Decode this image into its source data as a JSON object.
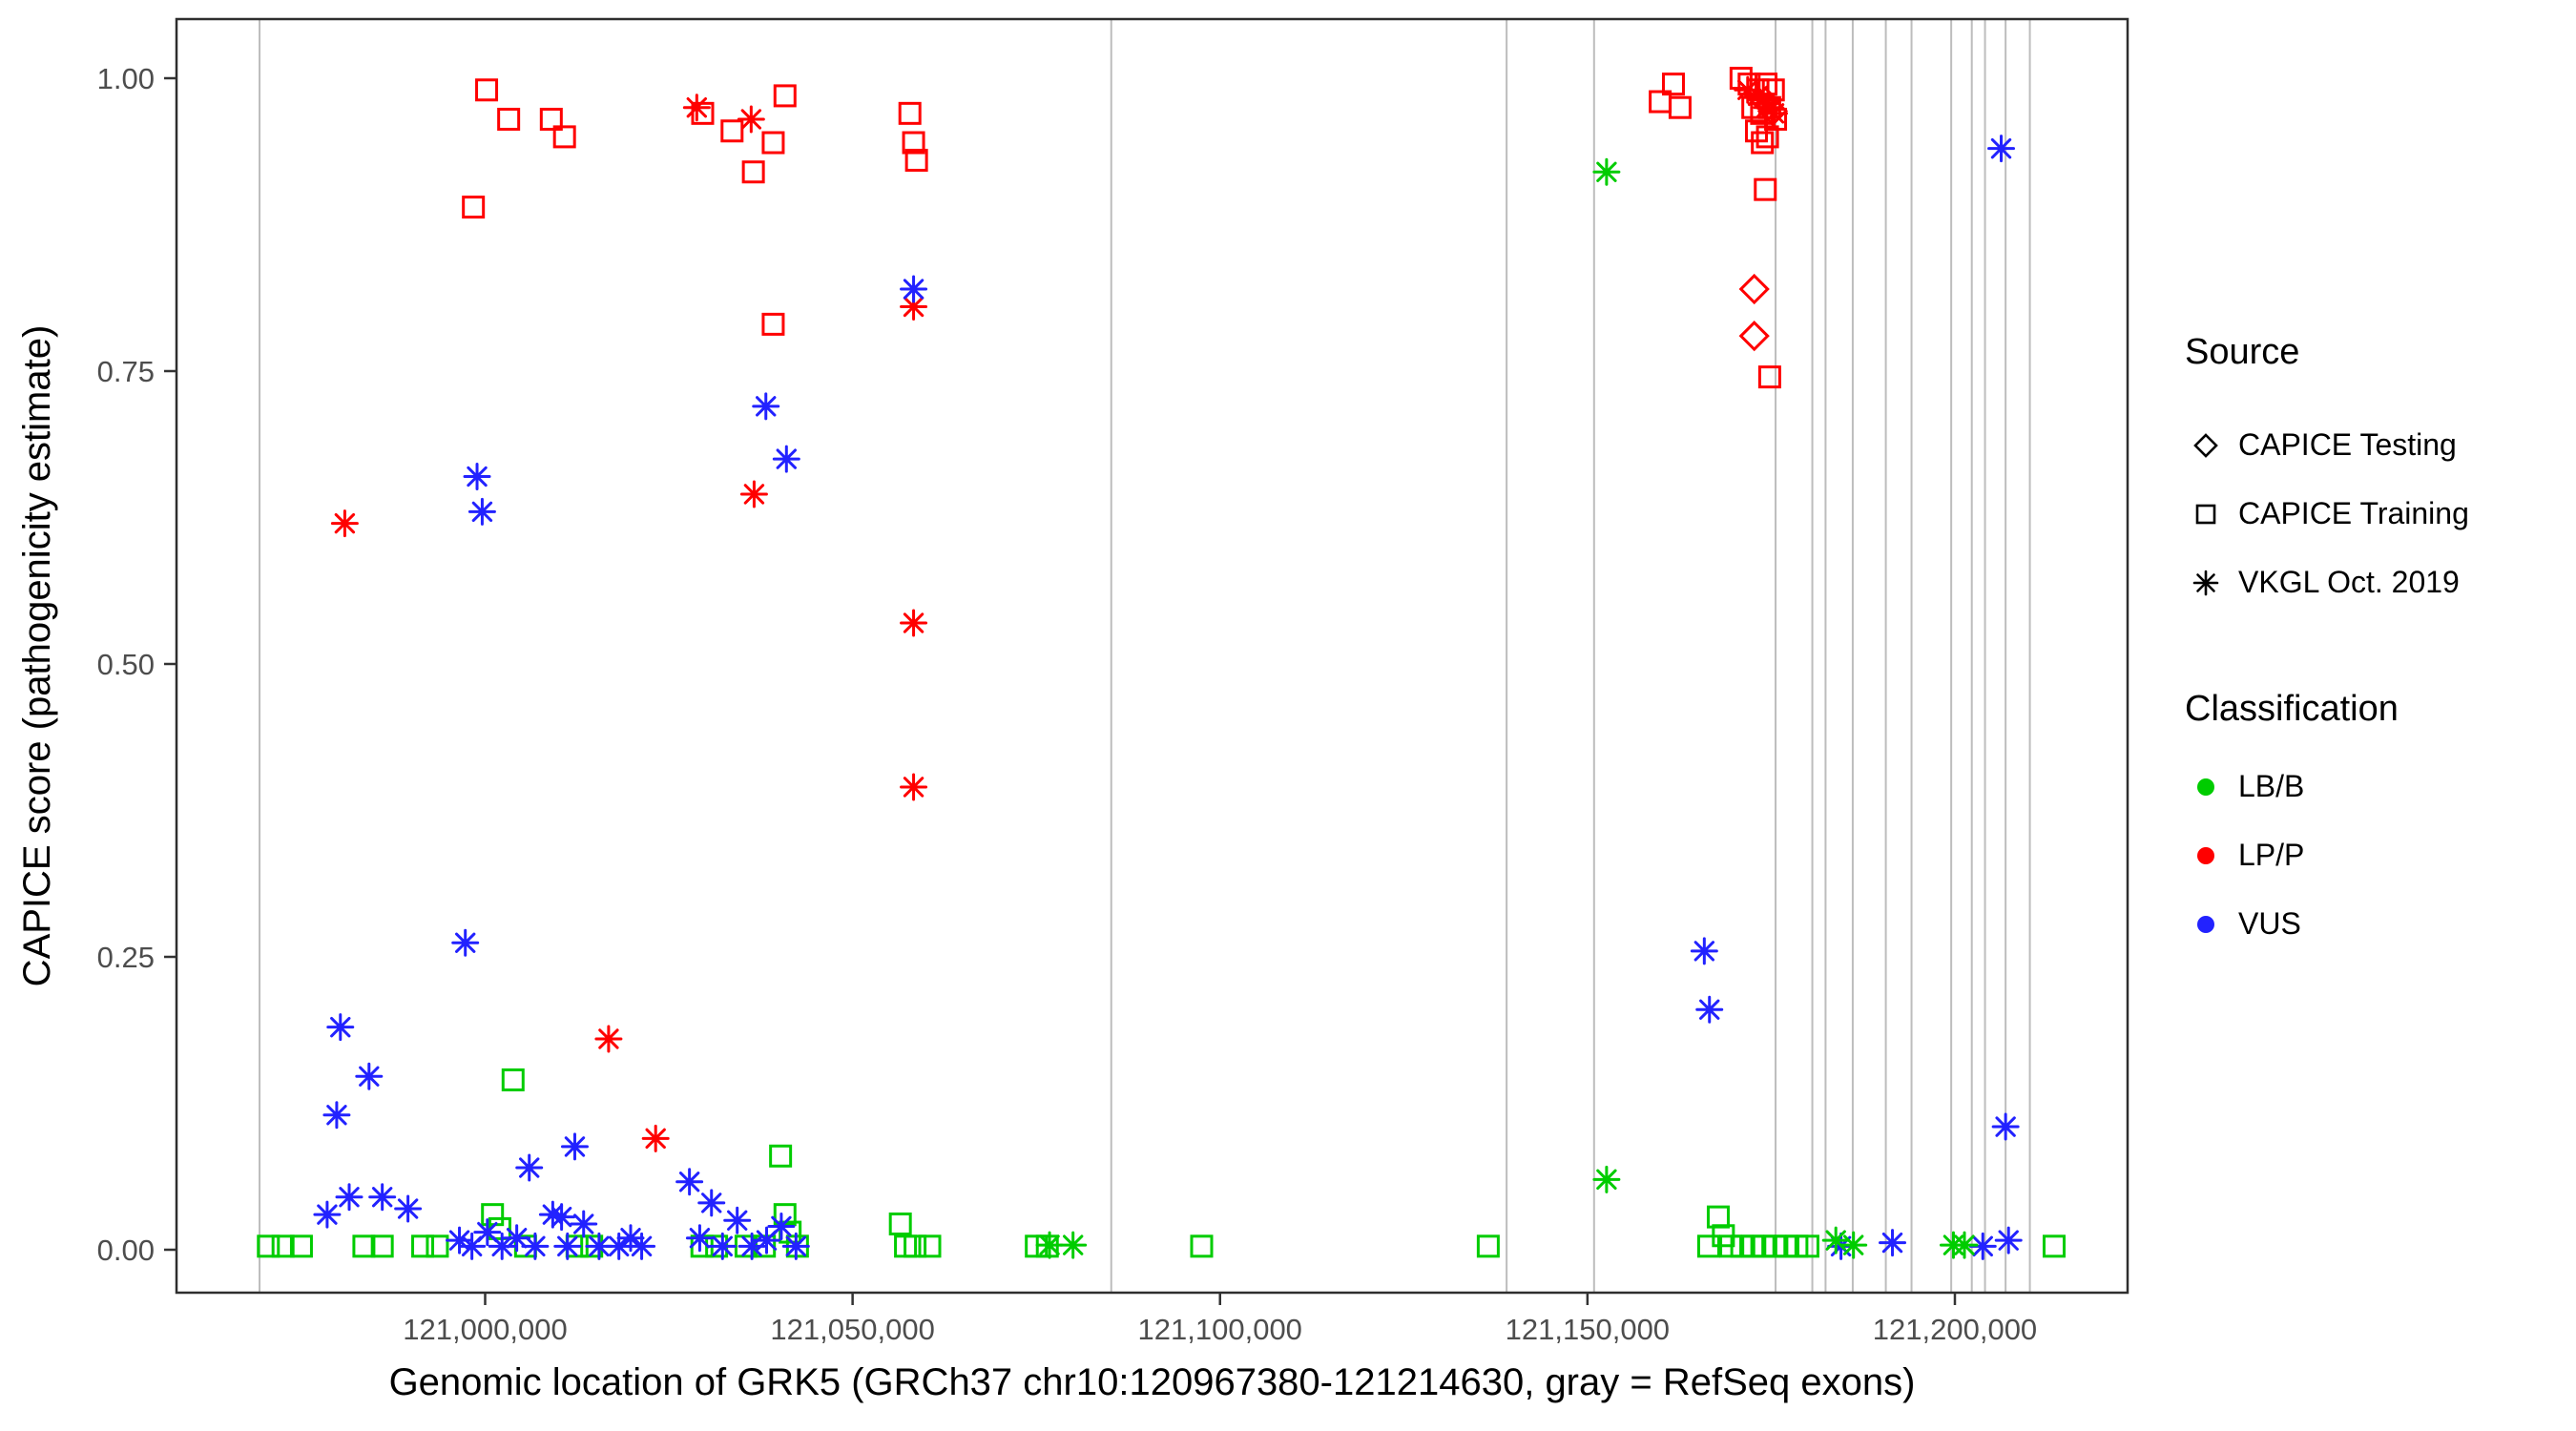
{
  "legend": {
    "source_title": "Source",
    "source_items": [
      "CAPICE Testing",
      "CAPICE Training",
      "VKGL Oct. 2019"
    ],
    "classification_title": "Classification",
    "classification_items": [
      "LB/B",
      "LP/P",
      "VUS"
    ]
  },
  "chart_data": {
    "type": "scatter",
    "title": "",
    "xlabel": "Genomic location of GRK5 (GRCh37 chr10:120967380-121214630, gray = RefSeq exons)",
    "ylabel": "CAPICE score (pathogenicity estimate)",
    "xlim": [
      120958000,
      121223500
    ],
    "ylim": [
      -0.037,
      1.05
    ],
    "x_ticks": [
      121000000,
      121050000,
      121100000,
      121150000,
      121200000
    ],
    "x_tick_labels": [
      "121,000,000",
      "121,050,000",
      "121,100,000",
      "121,150,000",
      "121,200,000"
    ],
    "y_ticks": [
      0.0,
      0.25,
      0.5,
      0.75,
      1.0
    ],
    "y_tick_labels": [
      "0.00",
      "0.25",
      "0.50",
      "0.75",
      "1.00"
    ],
    "grid": false,
    "legend_position": "right",
    "colors": {
      "lbb": "#00cc00",
      "lpp": "#ff0000",
      "vus": "#2222ff",
      "exon": "#bdbdbd"
    },
    "exons": [
      120969300,
      121085200,
      121139000,
      121150900,
      121175600,
      121180600,
      121182400,
      121186100,
      121190600,
      121194100,
      121199500,
      121202300,
      121204100,
      121206900,
      121210200
    ],
    "series": [
      {
        "name": "CAPICE Training / LP-P",
        "source": "CAPICE Training",
        "classification": "LP/P",
        "marker": "square",
        "color": "#ff0000",
        "points": [
          [
            120998400,
            0.89
          ],
          [
            121000200,
            0.99
          ],
          [
            121003200,
            0.965
          ],
          [
            121009000,
            0.965
          ],
          [
            121010800,
            0.95
          ],
          [
            121029600,
            0.97
          ],
          [
            121033600,
            0.955
          ],
          [
            121036500,
            0.92
          ],
          [
            121039200,
            0.945
          ],
          [
            121040800,
            0.985
          ],
          [
            121039200,
            0.79
          ],
          [
            121057800,
            0.97
          ],
          [
            121058300,
            0.945
          ],
          [
            121058700,
            0.93
          ],
          [
            121159900,
            0.98
          ],
          [
            121161700,
            0.995
          ],
          [
            121162600,
            0.975
          ],
          [
            121170900,
            1.0
          ],
          [
            121172000,
            0.995
          ],
          [
            121173200,
            0.99
          ],
          [
            121174300,
            0.995
          ],
          [
            121175300,
            0.99
          ],
          [
            121172500,
            0.975
          ],
          [
            121173700,
            0.97
          ],
          [
            121174800,
            0.975
          ],
          [
            121175600,
            0.965
          ],
          [
            121173000,
            0.955
          ],
          [
            121174500,
            0.95
          ],
          [
            121173800,
            0.945
          ],
          [
            121174200,
            0.905
          ],
          [
            121174800,
            0.745
          ]
        ]
      },
      {
        "name": "CAPICE Training / LB-B",
        "source": "CAPICE Training",
        "classification": "LB/B",
        "marker": "square",
        "color": "#00cc00",
        "points": [
          [
            120970500,
            0.003
          ],
          [
            120972500,
            0.003
          ],
          [
            120975000,
            0.003
          ],
          [
            120983500,
            0.003
          ],
          [
            120986000,
            0.003
          ],
          [
            120991500,
            0.003
          ],
          [
            120993500,
            0.003
          ],
          [
            121001000,
            0.03
          ],
          [
            121002000,
            0.018
          ],
          [
            121003800,
            0.145
          ],
          [
            121005500,
            0.003
          ],
          [
            121012500,
            0.003
          ],
          [
            121014500,
            0.003
          ],
          [
            121029500,
            0.003
          ],
          [
            121031500,
            0.003
          ],
          [
            121035500,
            0.003
          ],
          [
            121038000,
            0.003
          ],
          [
            121040200,
            0.08
          ],
          [
            121040800,
            0.03
          ],
          [
            121041500,
            0.015
          ],
          [
            121042500,
            0.003
          ],
          [
            121056500,
            0.022
          ],
          [
            121057200,
            0.003
          ],
          [
            121058500,
            0.003
          ],
          [
            121060500,
            0.003
          ],
          [
            121075000,
            0.003
          ],
          [
            121076500,
            0.003
          ],
          [
            121097500,
            0.003
          ],
          [
            121136500,
            0.003
          ],
          [
            121166500,
            0.003
          ],
          [
            121167800,
            0.028
          ],
          [
            121168500,
            0.012
          ],
          [
            121169500,
            0.003
          ],
          [
            121171000,
            0.003
          ],
          [
            121172500,
            0.003
          ],
          [
            121174000,
            0.003
          ],
          [
            121175500,
            0.003
          ],
          [
            121177000,
            0.003
          ],
          [
            121178500,
            0.003
          ],
          [
            121180000,
            0.003
          ],
          [
            121213500,
            0.003
          ]
        ]
      },
      {
        "name": "CAPICE Testing / LP-P",
        "source": "CAPICE Testing",
        "classification": "LP/P",
        "marker": "diamond",
        "color": "#ff0000",
        "points": [
          [
            121172700,
            0.82
          ],
          [
            121172700,
            0.78
          ],
          [
            121174200,
            0.98
          ],
          [
            121175200,
            0.972
          ]
        ]
      },
      {
        "name": "VKGL Oct. 2019 / LP-P",
        "source": "VKGL Oct. 2019",
        "classification": "LP/P",
        "marker": "asterisk",
        "color": "#ff0000",
        "points": [
          [
            120980900,
            0.62
          ],
          [
            121016800,
            0.18
          ],
          [
            121023200,
            0.095
          ],
          [
            121028800,
            0.975
          ],
          [
            121036200,
            0.965
          ],
          [
            121036600,
            0.645
          ],
          [
            121058300,
            0.805
          ],
          [
            121058300,
            0.535
          ],
          [
            121058300,
            0.395
          ],
          [
            121171800,
            0.99
          ],
          [
            121173200,
            0.985
          ],
          [
            121174400,
            0.975
          ],
          [
            121175400,
            0.97
          ]
        ]
      },
      {
        "name": "VKGL Oct. 2019 / VUS",
        "source": "VKGL Oct. 2019",
        "classification": "VUS",
        "marker": "asterisk",
        "color": "#2222ff",
        "points": [
          [
            120998900,
            0.66
          ],
          [
            120999600,
            0.63
          ],
          [
            120997300,
            0.262
          ],
          [
            121038200,
            0.72
          ],
          [
            121041000,
            0.675
          ],
          [
            121058300,
            0.82
          ],
          [
            120980300,
            0.19
          ],
          [
            120984200,
            0.148
          ],
          [
            120979800,
            0.115
          ],
          [
            121006000,
            0.07
          ],
          [
            121012200,
            0.088
          ],
          [
            120978500,
            0.03
          ],
          [
            120981500,
            0.045
          ],
          [
            120986000,
            0.045
          ],
          [
            120989500,
            0.035
          ],
          [
            120996500,
            0.008
          ],
          [
            120998200,
            0.003
          ],
          [
            121000300,
            0.015
          ],
          [
            121002300,
            0.003
          ],
          [
            121004300,
            0.01
          ],
          [
            121006800,
            0.003
          ],
          [
            121009200,
            0.03
          ],
          [
            121010400,
            0.028
          ],
          [
            121011200,
            0.003
          ],
          [
            121013400,
            0.022
          ],
          [
            121015500,
            0.003
          ],
          [
            121018200,
            0.003
          ],
          [
            121019800,
            0.01
          ],
          [
            121021300,
            0.003
          ],
          [
            121027800,
            0.058
          ],
          [
            121030800,
            0.04
          ],
          [
            121029200,
            0.01
          ],
          [
            121032300,
            0.003
          ],
          [
            121034300,
            0.025
          ],
          [
            121036300,
            0.003
          ],
          [
            121038300,
            0.008
          ],
          [
            121040300,
            0.02
          ],
          [
            121042300,
            0.003
          ],
          [
            121165900,
            0.255
          ],
          [
            121166600,
            0.205
          ],
          [
            121206300,
            0.94
          ],
          [
            121206900,
            0.105
          ],
          [
            121184500,
            0.003
          ],
          [
            121191500,
            0.006
          ],
          [
            121203800,
            0.003
          ],
          [
            121207300,
            0.008
          ]
        ]
      },
      {
        "name": "VKGL Oct. 2019 / LB-B",
        "source": "VKGL Oct. 2019",
        "classification": "LB/B",
        "marker": "asterisk",
        "color": "#00cc00",
        "points": [
          [
            121152600,
            0.92
          ],
          [
            121152600,
            0.06
          ],
          [
            121076800,
            0.004
          ],
          [
            121080000,
            0.004
          ],
          [
            121183800,
            0.008
          ],
          [
            121186200,
            0.004
          ],
          [
            121199800,
            0.004
          ],
          [
            121201300,
            0.004
          ]
        ]
      }
    ]
  }
}
